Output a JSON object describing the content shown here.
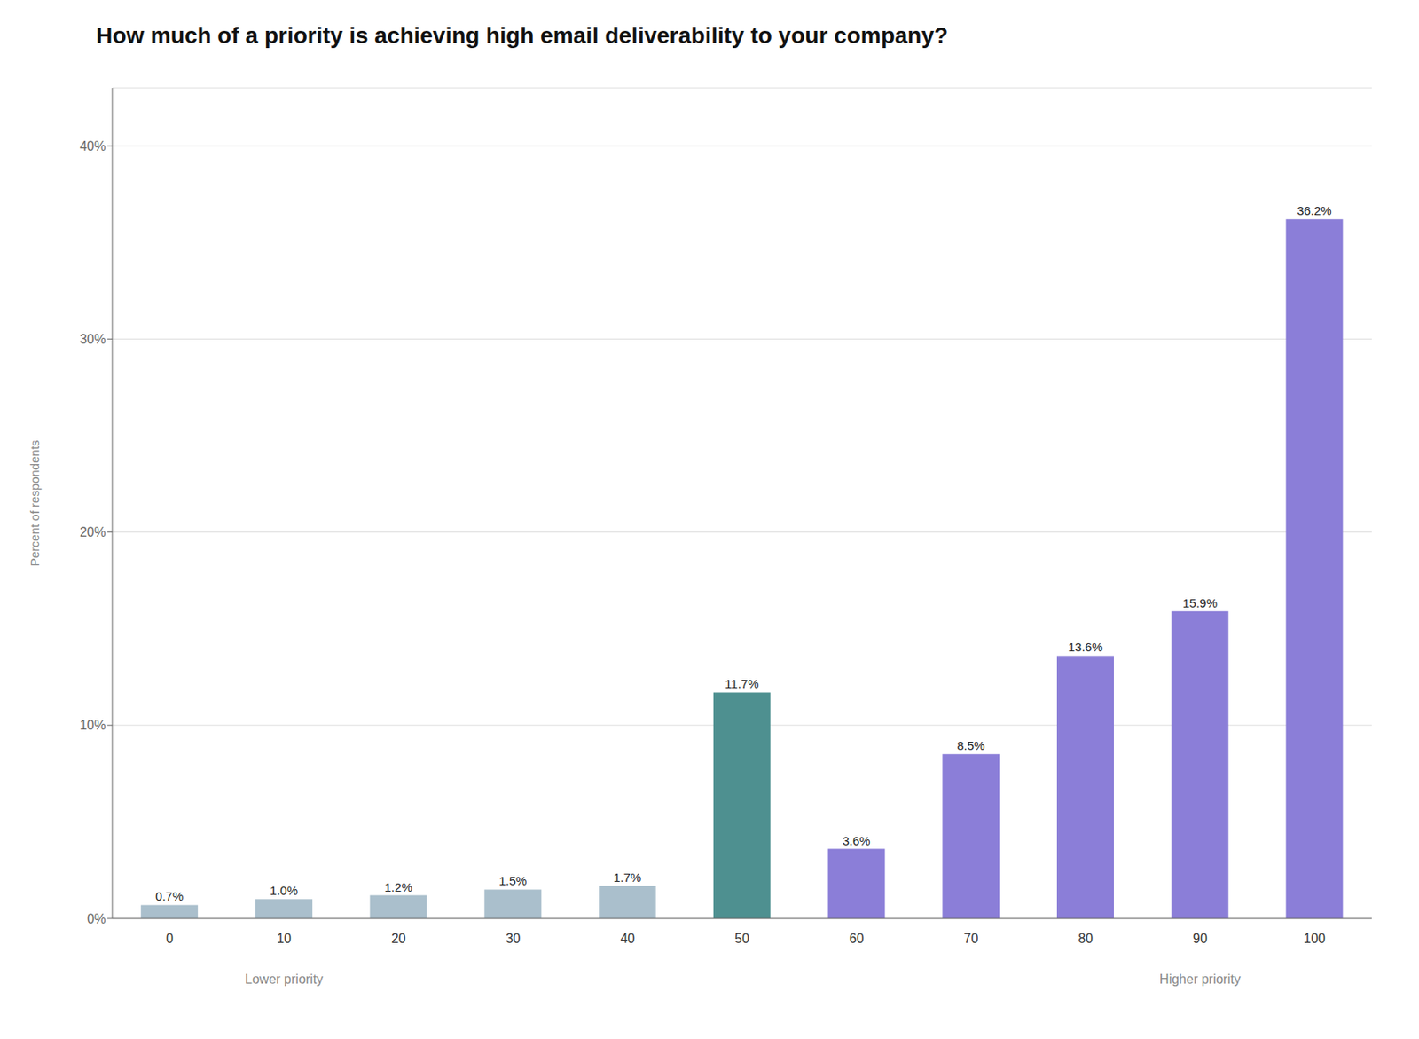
{
  "chart_data": {
    "type": "bar",
    "title": "How much of a priority is achieving high email deliverability to your company?",
    "ylabel": "Percent of respondents",
    "categories": [
      "0",
      "10",
      "20",
      "30",
      "40",
      "50",
      "60",
      "70",
      "80",
      "90",
      "100"
    ],
    "values": [
      0.7,
      1.0,
      1.2,
      1.5,
      1.7,
      11.7,
      3.6,
      8.5,
      13.6,
      15.9,
      36.2
    ],
    "value_labels": [
      "0.7%",
      "1.0%",
      "1.2%",
      "1.5%",
      "1.7%",
      "11.7%",
      "3.6%",
      "8.5%",
      "13.6%",
      "15.9%",
      "36.2%"
    ],
    "colors": [
      "#aabfcc",
      "#aabfcc",
      "#aabfcc",
      "#aabfcc",
      "#aabfcc",
      "#4e9090",
      "#8b7ed8",
      "#8b7ed8",
      "#8b7ed8",
      "#8b7ed8",
      "#8b7ed8"
    ],
    "ylim": [
      0,
      43
    ],
    "yticks": [
      {
        "value": 0,
        "label": "0%"
      },
      {
        "value": 10,
        "label": "10%"
      },
      {
        "value": 20,
        "label": "20%"
      },
      {
        "value": 30,
        "label": "30%"
      },
      {
        "value": 40,
        "label": "40%"
      }
    ],
    "grid": true,
    "data_labels": true,
    "annotations": [
      {
        "text": "Lower priority",
        "x": "10"
      },
      {
        "text": "Higher priority",
        "x": "90"
      }
    ]
  }
}
